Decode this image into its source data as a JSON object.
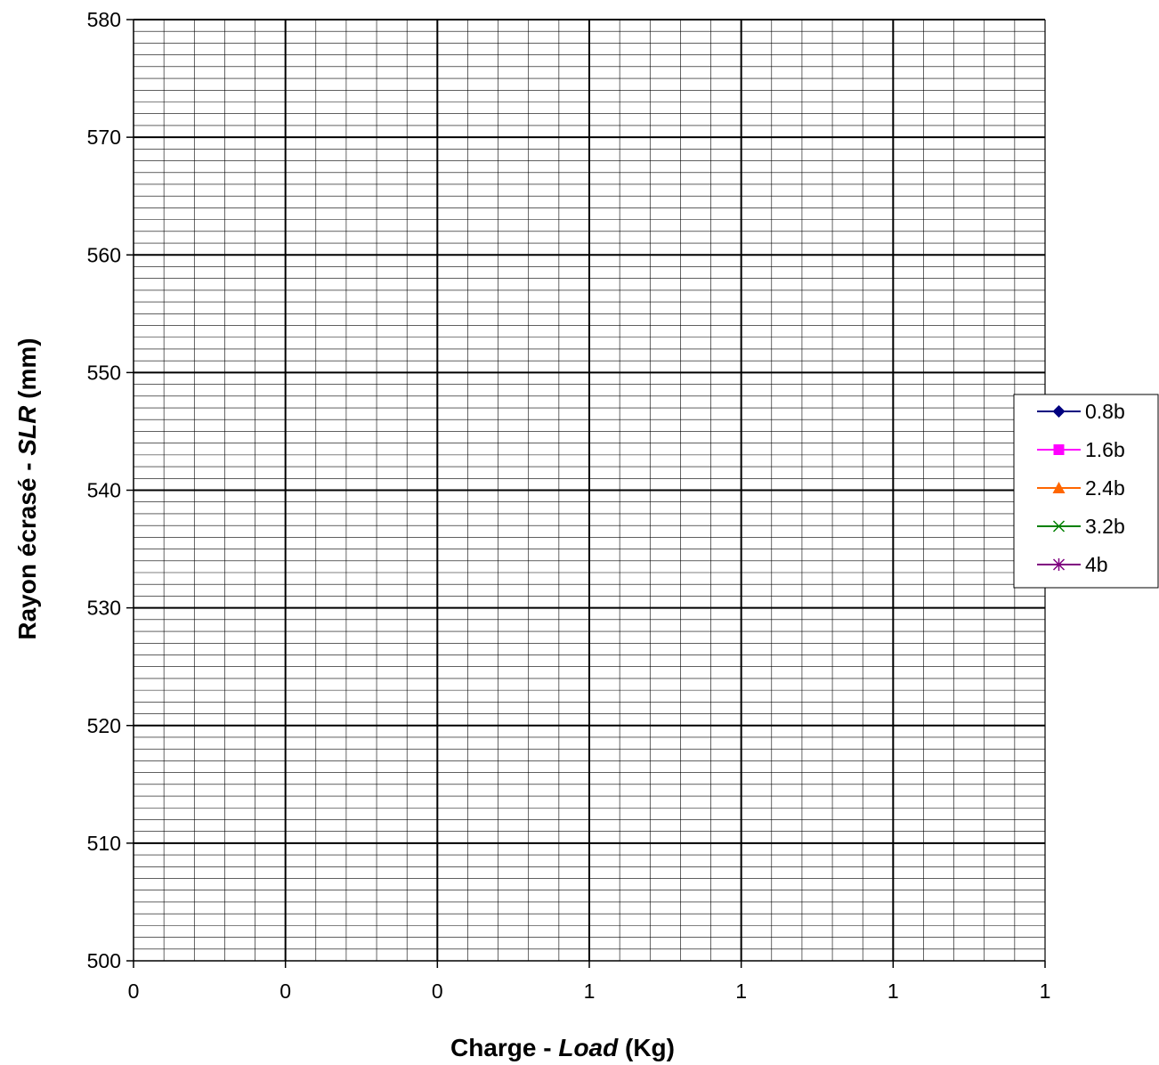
{
  "chart_data": {
    "type": "line",
    "title": "",
    "xlabel": {
      "prefix": "Charge - ",
      "italic": "Load",
      "suffix": " (Kg)"
    },
    "ylabel": {
      "prefix": "Rayon écrasé - ",
      "italic": "SLR",
      "suffix": " (mm)"
    },
    "x_tick_labels": [
      "0",
      "0",
      "0",
      "1",
      "1",
      "1",
      "1"
    ],
    "y_tick_labels": [
      "500",
      "510",
      "520",
      "530",
      "540",
      "550",
      "560",
      "570",
      "580"
    ],
    "ylim": [
      500,
      580
    ],
    "grid": true,
    "legend_position": "right",
    "series": [
      {
        "name": "0.8b",
        "color": "#000080",
        "marker": "diamond",
        "x": [],
        "y": []
      },
      {
        "name": "1.6b",
        "color": "#FF00FF",
        "marker": "square",
        "x": [],
        "y": []
      },
      {
        "name": "2.4b",
        "color": "#FF6600",
        "marker": "triangle",
        "x": [],
        "y": []
      },
      {
        "name": "3.2b",
        "color": "#008000",
        "marker": "x",
        "x": [],
        "y": []
      },
      {
        "name": "4b",
        "color": "#800080",
        "marker": "star",
        "x": [],
        "y": []
      }
    ]
  }
}
